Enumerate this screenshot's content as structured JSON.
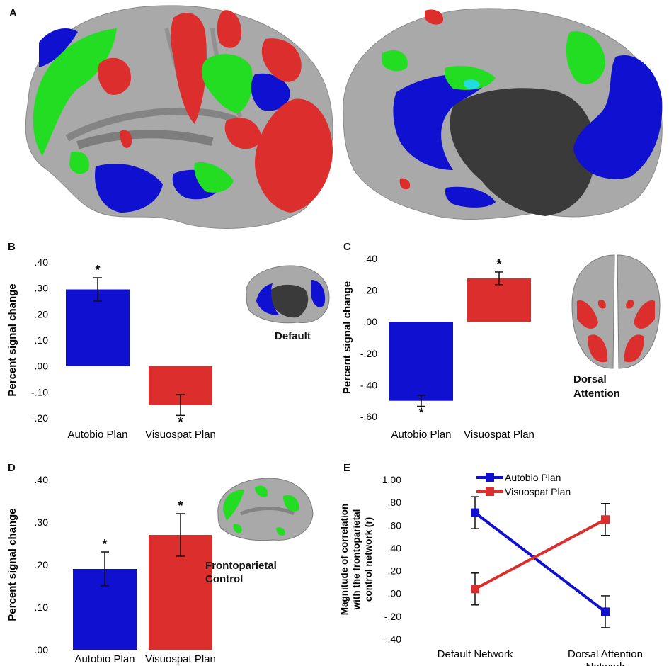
{
  "panels": {
    "A": {
      "letter": "A"
    },
    "B": {
      "letter": "B",
      "inset_label": "Default"
    },
    "C": {
      "letter": "C",
      "inset_label_1": "Dorsal",
      "inset_label_2": "Attention"
    },
    "D": {
      "letter": "D",
      "inset_label_1": "Frontoparietal",
      "inset_label_2": "Control"
    },
    "E": {
      "letter": "E"
    }
  },
  "colors": {
    "blue": "#1010d0",
    "red": "#dd2e2e",
    "green": "#22dd22",
    "brain_gray": "#a8a8a8",
    "brain_dark": "#3a3a3a"
  },
  "chart_data": [
    {
      "id": "B",
      "type": "bar",
      "categories": [
        "Autobio Plan",
        "Visuospat Plan"
      ],
      "values": [
        0.295,
        -0.15
      ],
      "errors": [
        0.045,
        0.04
      ],
      "significance": [
        "*",
        "*"
      ],
      "colors": [
        "#1010d0",
        "#dd2e2e"
      ],
      "ylabel": "Percent signal change",
      "ylim": [
        -0.2,
        0.4
      ],
      "yticks": [
        0.4,
        0.3,
        0.2,
        0.1,
        0.0,
        -0.1,
        -0.2
      ],
      "yticklabels": [
        ".40",
        ".30",
        ".20",
        ".10",
        ".00",
        "-.10",
        "-.20"
      ]
    },
    {
      "id": "C",
      "type": "bar",
      "categories": [
        "Autobio Plan",
        "Visuospat Plan"
      ],
      "values": [
        -0.5,
        0.275
      ],
      "errors": [
        0.035,
        0.04
      ],
      "significance": [
        "*",
        "*"
      ],
      "colors": [
        "#1010d0",
        "#dd2e2e"
      ],
      "ylabel": "Percent signal change",
      "ylim": [
        -0.6,
        0.4
      ],
      "yticks": [
        0.4,
        0.2,
        0.0,
        -0.2,
        -0.4,
        -0.6
      ],
      "yticklabels": [
        ".40",
        ".20",
        ".00",
        "-.20",
        "-.40",
        "-.60"
      ]
    },
    {
      "id": "D",
      "type": "bar",
      "categories": [
        "Autobio Plan",
        "Visuospat Plan"
      ],
      "values": [
        0.19,
        0.27
      ],
      "errors": [
        0.04,
        0.05
      ],
      "significance": [
        "*",
        "*"
      ],
      "colors": [
        "#1010d0",
        "#dd2e2e"
      ],
      "ylabel": "Percent signal change",
      "ylim": [
        0.0,
        0.4
      ],
      "yticks": [
        0.4,
        0.3,
        0.2,
        0.1,
        0.0
      ],
      "yticklabels": [
        ".40",
        ".30",
        ".20",
        ".10",
        ".00"
      ]
    },
    {
      "id": "E",
      "type": "line",
      "x": [
        "Default Network",
        "Dorsal Attention Network"
      ],
      "xlabels": [
        [
          "Default Network"
        ],
        [
          "Dorsal Attention",
          "Network"
        ]
      ],
      "series": [
        {
          "name": "Autobio Plan",
          "color": "#1010d0",
          "values": [
            0.71,
            -0.16
          ],
          "errors": [
            0.14,
            0.14
          ]
        },
        {
          "name": "Visuospat Plan",
          "color": "#dd2e2e",
          "values": [
            0.04,
            0.65
          ],
          "errors": [
            0.14,
            0.14
          ]
        }
      ],
      "ylabel_lines": [
        "Magnitude of correlation",
        "with the frontoparietal",
        "control network (r)"
      ],
      "ylim": [
        -0.4,
        1.0
      ],
      "yticks": [
        1.0,
        0.8,
        0.6,
        0.4,
        0.2,
        0.0,
        -0.2,
        -0.4
      ],
      "yticklabels": [
        "1.00",
        ".80",
        ".60",
        ".40",
        ".20",
        ".00",
        "-.20",
        "-.40"
      ],
      "legend_position": "top-center"
    }
  ]
}
